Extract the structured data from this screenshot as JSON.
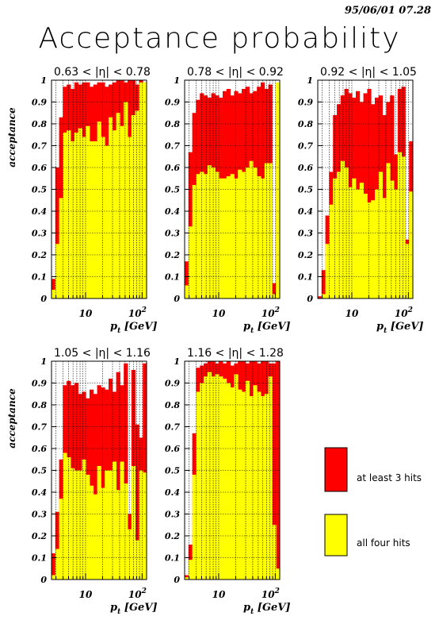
{
  "datestamp": "95/06/01   07.28",
  "title": "Acceptance probability",
  "colors": {
    "three_hits": "#ff0000",
    "four_hits": "#ffff00"
  },
  "legend": [
    {
      "label": "at least 3 hits",
      "color": "#ff0000"
    },
    {
      "label": "all four hits",
      "color": "#ffff00"
    }
  ],
  "chart_data": [
    {
      "type": "bar",
      "title": "0.63 < |η| < 0.78",
      "xlabel": "p_t [GeV]",
      "ylabel": "acceptance",
      "xscale": "log",
      "xlim": [
        2.5,
        120
      ],
      "ylim": [
        0,
        1
      ],
      "yticks": [
        "0",
        "0.1",
        "0.2",
        "0.3",
        "0.4",
        "0.5",
        "0.6",
        "0.7",
        "0.8",
        "0.9",
        "1"
      ],
      "xticks": [
        "10",
        "10^2"
      ],
      "grid": true,
      "series": [
        {
          "name": "at least 3 hits",
          "values": [
            0.09,
            0.6,
            0.83,
            0.97,
            0.98,
            0.96,
            0.99,
            0.98,
            0.99,
            0.99,
            0.97,
            0.98,
            0.99,
            0.99,
            0.97,
            0.98,
            0.99,
            1.0,
            1.0,
            0.99,
            1.0,
            1.0,
            0.98,
            1.0,
            0.99
          ]
        },
        {
          "name": "all four hits",
          "values": [
            0.04,
            0.25,
            0.46,
            0.76,
            0.77,
            0.72,
            0.76,
            0.78,
            0.74,
            0.79,
            0.72,
            0.72,
            0.81,
            0.74,
            0.7,
            0.83,
            0.77,
            0.85,
            0.79,
            0.9,
            0.74,
            0.84,
            0.86,
            0.99,
            0.99
          ]
        }
      ]
    },
    {
      "type": "bar",
      "title": "0.78 < |η| < 0.92",
      "xlabel": "p_t [GeV]",
      "ylabel": "acceptance",
      "xscale": "log",
      "xlim": [
        2.5,
        120
      ],
      "ylim": [
        0,
        1
      ],
      "yticks": [
        "0",
        "0.1",
        "0.2",
        "0.3",
        "0.4",
        "0.5",
        "0.6",
        "0.7",
        "0.8",
        "0.9",
        "1"
      ],
      "xticks": [
        "10",
        "10^2"
      ],
      "grid": true,
      "series": [
        {
          "name": "at least 3 hits",
          "values": [
            0.17,
            0.67,
            0.85,
            0.91,
            0.94,
            0.93,
            0.92,
            0.94,
            0.93,
            0.92,
            0.95,
            0.96,
            0.93,
            0.95,
            0.94,
            0.96,
            0.97,
            0.94,
            0.95,
            0.97,
            0.99,
            0.96,
            0.98,
            0.07,
            0.9
          ]
        },
        {
          "name": "all four hits",
          "values": [
            0.06,
            0.33,
            0.52,
            0.57,
            0.58,
            0.57,
            0.61,
            0.6,
            0.58,
            0.55,
            0.55,
            0.56,
            0.57,
            0.55,
            0.59,
            0.58,
            0.6,
            0.63,
            0.6,
            0.56,
            0.55,
            0.62,
            0.62,
            0.02,
            0.99
          ]
        }
      ]
    },
    {
      "type": "bar",
      "title": "0.92 < |η| < 1.05",
      "xlabel": "p_t [GeV]",
      "ylabel": "acceptance",
      "xscale": "log",
      "xlim": [
        2.5,
        120
      ],
      "ylim": [
        0,
        1
      ],
      "yticks": [
        "0",
        "0.1",
        "0.2",
        "0.3",
        "0.4",
        "0.5",
        "0.6",
        "0.7",
        "0.8",
        "0.9",
        "1"
      ],
      "xticks": [
        "10",
        "10^2"
      ],
      "grid": true,
      "series": [
        {
          "name": "at least 3 hits",
          "values": [
            0.01,
            0.13,
            0.38,
            0.58,
            0.84,
            0.89,
            0.93,
            0.96,
            0.94,
            0.92,
            0.95,
            0.9,
            0.94,
            0.96,
            0.89,
            0.92,
            0.93,
            0.84,
            0.9,
            0.93,
            0.66,
            0.96,
            0.97,
            0.27,
            0.72
          ]
        },
        {
          "name": "all four hits",
          "values": [
            0.0,
            0.02,
            0.25,
            0.43,
            0.55,
            0.58,
            0.63,
            0.6,
            0.51,
            0.55,
            0.5,
            0.53,
            0.48,
            0.44,
            0.45,
            0.5,
            0.58,
            0.46,
            0.62,
            0.54,
            0.5,
            0.67,
            0.65,
            0.25,
            0.49
          ]
        }
      ]
    },
    {
      "type": "bar",
      "title": "1.05 < |η| < 1.16",
      "xlabel": "p_t [GeV]",
      "ylabel": "acceptance",
      "xscale": "log",
      "xlim": [
        2.5,
        120
      ],
      "ylim": [
        0,
        1
      ],
      "yticks": [
        "0",
        "0.1",
        "0.2",
        "0.3",
        "0.4",
        "0.5",
        "0.6",
        "0.7",
        "0.8",
        "0.9",
        "1"
      ],
      "xticks": [
        "10",
        "10^2"
      ],
      "grid": true,
      "series": [
        {
          "name": "at least 3 hits",
          "values": [
            0.12,
            0.31,
            0.55,
            0.89,
            0.91,
            0.89,
            0.9,
            0.85,
            0.86,
            0.83,
            0.87,
            0.85,
            0.89,
            0.88,
            0.87,
            0.92,
            0.86,
            0.95,
            0.89,
            0.99,
            0.3,
            0.96,
            0.71,
            0.65,
            0.99
          ]
        },
        {
          "name": "all four hits",
          "values": [
            0.02,
            0.14,
            0.37,
            0.58,
            0.56,
            0.51,
            0.5,
            0.5,
            0.55,
            0.48,
            0.43,
            0.39,
            0.52,
            0.42,
            0.5,
            0.5,
            0.54,
            0.41,
            0.54,
            0.44,
            0.23,
            0.52,
            0.18,
            0.5,
            0.49
          ]
        }
      ]
    },
    {
      "type": "bar",
      "title": "1.16 < |η| < 1.28",
      "xlabel": "p_t [GeV]",
      "ylabel": "acceptance",
      "xscale": "log",
      "xlim": [
        2.5,
        120
      ],
      "ylim": [
        0,
        1
      ],
      "yticks": [
        "0",
        "0.1",
        "0.2",
        "0.3",
        "0.4",
        "0.5",
        "0.6",
        "0.7",
        "0.8",
        "0.9",
        "1"
      ],
      "xticks": [
        "10",
        "10^2"
      ],
      "grid": true,
      "series": [
        {
          "name": "at least 3 hits",
          "values": [
            0.02,
            0.16,
            0.67,
            0.97,
            0.98,
            0.99,
            1.0,
            1.0,
            0.99,
            1.0,
            0.99,
            1.0,
            0.98,
            0.99,
            1.0,
            1.0,
            0.99,
            1.0,
            1.0,
            0.99,
            1.0,
            1.0,
            0.99,
            0.99,
            1.0
          ]
        },
        {
          "name": "all four hits",
          "values": [
            0.01,
            0.09,
            0.48,
            0.86,
            0.9,
            0.93,
            0.95,
            0.93,
            0.94,
            0.93,
            0.92,
            0.9,
            0.88,
            0.94,
            0.87,
            0.86,
            0.91,
            0.84,
            0.89,
            0.86,
            0.84,
            0.85,
            0.93,
            0.25,
            0.05
          ]
        }
      ]
    }
  ]
}
